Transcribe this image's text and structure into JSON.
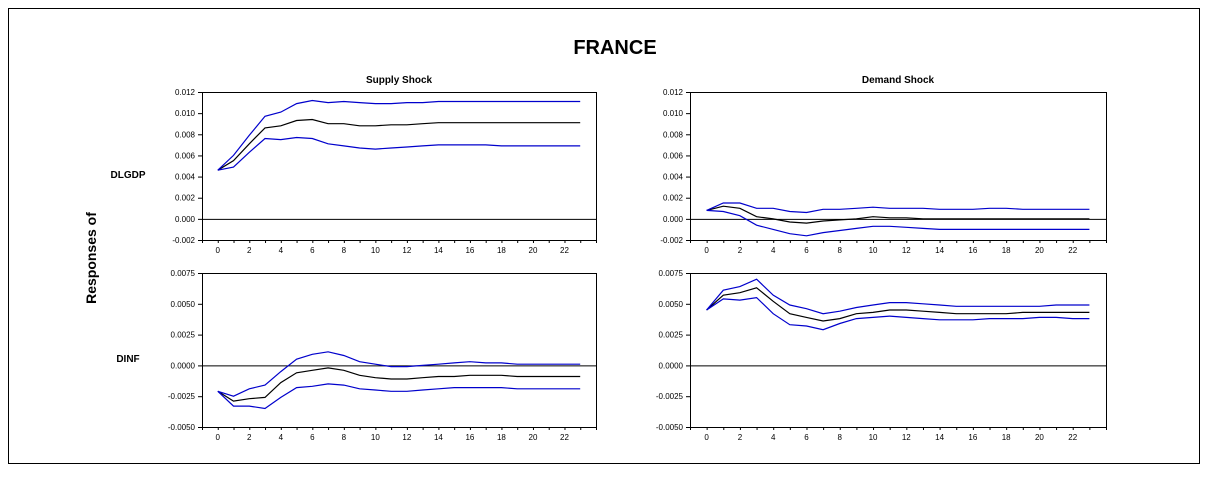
{
  "figure": {
    "title": "FRANCE",
    "ylabel": "Responses of"
  },
  "colors": {
    "response": "#000000",
    "band": "#0000cc",
    "frame": "#000000",
    "zero": "#000000"
  },
  "chart_data": [
    {
      "type": "line",
      "row_label": "DLGDP",
      "title": "Supply Shock",
      "x": [
        0,
        1,
        2,
        3,
        4,
        5,
        6,
        7,
        8,
        9,
        10,
        11,
        12,
        13,
        14,
        15,
        16,
        17,
        18,
        19,
        20,
        21,
        22,
        23
      ],
      "xticks": [
        0,
        2,
        4,
        6,
        8,
        10,
        12,
        14,
        16,
        18,
        20,
        22
      ],
      "ylim": [
        -0.002,
        0.012
      ],
      "yticks": [
        "0.012",
        "0.010",
        "0.008",
        "0.006",
        "0.004",
        "0.002",
        "0.000",
        "-0.002"
      ],
      "series": [
        {
          "role": "response",
          "values": [
            0.0046,
            0.0055,
            0.0071,
            0.0086,
            0.0088,
            0.0093,
            0.0094,
            0.009,
            0.009,
            0.0088,
            0.0088,
            0.0089,
            0.0089,
            0.009,
            0.0091,
            0.0091,
            0.0091,
            0.0091,
            0.0091,
            0.0091,
            0.0091,
            0.0091,
            0.0091,
            0.0091
          ]
        },
        {
          "role": "upper",
          "values": [
            0.0046,
            0.006,
            0.0079,
            0.0097,
            0.0101,
            0.0109,
            0.0112,
            0.011,
            0.0111,
            0.011,
            0.0109,
            0.0109,
            0.011,
            0.011,
            0.0111,
            0.0111,
            0.0111,
            0.0111,
            0.0111,
            0.0111,
            0.0111,
            0.0111,
            0.0111,
            0.0111
          ]
        },
        {
          "role": "lower",
          "values": [
            0.0046,
            0.0049,
            0.0063,
            0.0076,
            0.0075,
            0.0077,
            0.0076,
            0.0071,
            0.0069,
            0.0067,
            0.0066,
            0.0067,
            0.0068,
            0.0069,
            0.007,
            0.007,
            0.007,
            0.007,
            0.0069,
            0.0069,
            0.0069,
            0.0069,
            0.0069,
            0.0069
          ]
        }
      ]
    },
    {
      "type": "line",
      "row_label": "",
      "title": "Demand Shock",
      "x": [
        0,
        1,
        2,
        3,
        4,
        5,
        6,
        7,
        8,
        9,
        10,
        11,
        12,
        13,
        14,
        15,
        16,
        17,
        18,
        19,
        20,
        21,
        22,
        23
      ],
      "xticks": [
        0,
        2,
        4,
        6,
        8,
        10,
        12,
        14,
        16,
        18,
        20,
        22
      ],
      "ylim": [
        -0.002,
        0.012
      ],
      "yticks": [
        "0.012",
        "0.010",
        "0.008",
        "0.006",
        "0.004",
        "0.002",
        "0.000",
        "-0.002"
      ],
      "series": [
        {
          "role": "response",
          "values": [
            0.0008,
            0.0012,
            0.001,
            0.0002,
            0.0,
            -0.0003,
            -0.0004,
            -0.0002,
            -0.0001,
            0.0,
            0.0002,
            0.0001,
            0.0001,
            0.0,
            0.0,
            0.0,
            0.0,
            0.0,
            0.0,
            0.0,
            0.0,
            0.0,
            0.0,
            0.0
          ]
        },
        {
          "role": "upper",
          "values": [
            0.0008,
            0.0015,
            0.0015,
            0.001,
            0.001,
            0.0007,
            0.0006,
            0.0009,
            0.0009,
            0.001,
            0.0011,
            0.001,
            0.001,
            0.001,
            0.0009,
            0.0009,
            0.0009,
            0.001,
            0.001,
            0.0009,
            0.0009,
            0.0009,
            0.0009,
            0.0009
          ]
        },
        {
          "role": "lower",
          "values": [
            0.0008,
            0.0007,
            0.0003,
            -0.0006,
            -0.001,
            -0.0014,
            -0.0016,
            -0.0013,
            -0.0011,
            -0.0009,
            -0.0007,
            -0.0007,
            -0.0008,
            -0.0009,
            -0.001,
            -0.001,
            -0.001,
            -0.001,
            -0.001,
            -0.001,
            -0.001,
            -0.001,
            -0.001,
            -0.001
          ]
        }
      ]
    },
    {
      "type": "line",
      "row_label": "DINF",
      "title": "",
      "x": [
        0,
        1,
        2,
        3,
        4,
        5,
        6,
        7,
        8,
        9,
        10,
        11,
        12,
        13,
        14,
        15,
        16,
        17,
        18,
        19,
        20,
        21,
        22,
        23
      ],
      "xticks": [
        0,
        2,
        4,
        6,
        8,
        10,
        12,
        14,
        16,
        18,
        20,
        22
      ],
      "ylim": [
        -0.005,
        0.0075
      ],
      "yticks": [
        "0.0075",
        "0.0050",
        "0.0025",
        "0.0000",
        "-0.0025",
        "-0.0050"
      ],
      "series": [
        {
          "role": "response",
          "values": [
            -0.0021,
            -0.0029,
            -0.0027,
            -0.0026,
            -0.0014,
            -0.0006,
            -0.0004,
            -0.0002,
            -0.0004,
            -0.0008,
            -0.001,
            -0.0011,
            -0.0011,
            -0.001,
            -0.0009,
            -0.0009,
            -0.0008,
            -0.0008,
            -0.0008,
            -0.0009,
            -0.0009,
            -0.0009,
            -0.0009,
            -0.0009
          ]
        },
        {
          "role": "upper",
          "values": [
            -0.0021,
            -0.0025,
            -0.0019,
            -0.0016,
            -0.0005,
            0.0005,
            0.0009,
            0.0011,
            0.0008,
            0.0003,
            0.0001,
            -0.0001,
            -0.0001,
            0.0,
            0.0001,
            0.0002,
            0.0003,
            0.0002,
            0.0002,
            0.0001,
            0.0001,
            0.0001,
            0.0001,
            0.0001
          ]
        },
        {
          "role": "lower",
          "values": [
            -0.0021,
            -0.0033,
            -0.0033,
            -0.0035,
            -0.0026,
            -0.0018,
            -0.0017,
            -0.0015,
            -0.0016,
            -0.0019,
            -0.002,
            -0.0021,
            -0.0021,
            -0.002,
            -0.0019,
            -0.0018,
            -0.0018,
            -0.0018,
            -0.0018,
            -0.0019,
            -0.0019,
            -0.0019,
            -0.0019,
            -0.0019
          ]
        }
      ]
    },
    {
      "type": "line",
      "row_label": "",
      "title": "",
      "x": [
        0,
        1,
        2,
        3,
        4,
        5,
        6,
        7,
        8,
        9,
        10,
        11,
        12,
        13,
        14,
        15,
        16,
        17,
        18,
        19,
        20,
        21,
        22,
        23
      ],
      "xticks": [
        0,
        2,
        4,
        6,
        8,
        10,
        12,
        14,
        16,
        18,
        20,
        22
      ],
      "ylim": [
        -0.005,
        0.0075
      ],
      "yticks": [
        "0.0075",
        "0.0050",
        "0.0025",
        "0.0000",
        "-0.0025",
        "-0.0050"
      ],
      "series": [
        {
          "role": "response",
          "values": [
            0.0045,
            0.0057,
            0.0059,
            0.0063,
            0.0052,
            0.0042,
            0.0039,
            0.0036,
            0.0038,
            0.0042,
            0.0043,
            0.0045,
            0.0045,
            0.0044,
            0.0043,
            0.0042,
            0.0042,
            0.0042,
            0.0042,
            0.0043,
            0.0043,
            0.0043,
            0.0043,
            0.0043
          ]
        },
        {
          "role": "upper",
          "values": [
            0.0045,
            0.0061,
            0.0064,
            0.007,
            0.0057,
            0.0049,
            0.0046,
            0.0042,
            0.0044,
            0.0047,
            0.0049,
            0.0051,
            0.0051,
            0.005,
            0.0049,
            0.0048,
            0.0048,
            0.0048,
            0.0048,
            0.0048,
            0.0048,
            0.0049,
            0.0049,
            0.0049
          ]
        },
        {
          "role": "lower",
          "values": [
            0.0045,
            0.0054,
            0.0053,
            0.0055,
            0.0042,
            0.0033,
            0.0032,
            0.0029,
            0.0034,
            0.0038,
            0.0039,
            0.004,
            0.0039,
            0.0038,
            0.0037,
            0.0037,
            0.0037,
            0.0038,
            0.0038,
            0.0038,
            0.0039,
            0.0039,
            0.0038,
            0.0038
          ]
        }
      ]
    }
  ]
}
